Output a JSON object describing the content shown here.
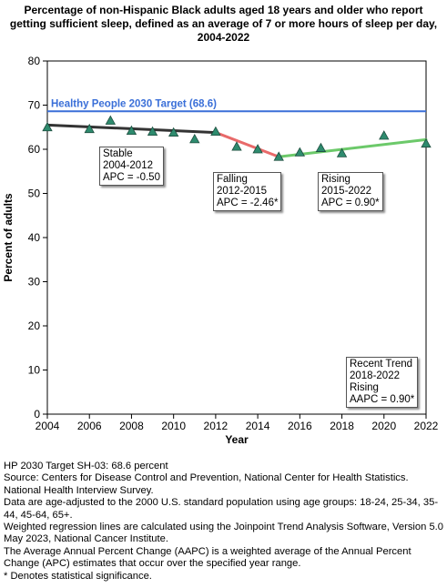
{
  "title": {
    "lines": [
      "Percentage of non-Hispanic Black adults aged 18 years and older who report",
      "getting sufficient sleep, defined as an average of 7 or more hours of sleep per day,",
      "2004-2022"
    ]
  },
  "chart_data": {
    "type": "scatter",
    "xlabel": "Year",
    "ylabel": "Percent of adults",
    "xlim": [
      2004,
      2022
    ],
    "ylim": [
      0,
      80
    ],
    "x_ticks": [
      2004,
      2006,
      2008,
      2010,
      2012,
      2014,
      2016,
      2018,
      2020,
      2022
    ],
    "y_ticks": [
      0,
      10,
      20,
      30,
      40,
      50,
      60,
      70,
      80
    ],
    "grid": false,
    "points": {
      "x": [
        2004,
        2006,
        2007,
        2008,
        2009,
        2010,
        2011,
        2012,
        2013,
        2014,
        2015,
        2016,
        2017,
        2018,
        2020,
        2022
      ],
      "y": [
        65.0,
        64.6,
        66.5,
        64.2,
        64.0,
        63.8,
        62.3,
        64.0,
        60.6,
        60.0,
        58.3,
        59.3,
        60.3,
        59.1,
        63.1,
        61.3
      ],
      "color": "#2e8b6e"
    },
    "target": {
      "label": "Healthy People 2030 Target (68.6)",
      "value": 68.6,
      "color": "#3a6fd8"
    },
    "trend_segments": [
      {
        "x": [
          2004,
          2012
        ],
        "y": [
          65.5,
          63.8
        ],
        "color": "#333333"
      },
      {
        "x": [
          2012,
          2015
        ],
        "y": [
          63.8,
          58.3
        ],
        "color": "#e86a6a"
      },
      {
        "x": [
          2015,
          2022
        ],
        "y": [
          58.3,
          62.2
        ],
        "color": "#6cc96a"
      }
    ],
    "annotations": [
      {
        "lines": [
          "Stable",
          "2004-2012",
          "APC = -0.50"
        ]
      },
      {
        "lines": [
          "Falling",
          "2012-2015",
          "APC = -2.46*"
        ]
      },
      {
        "lines": [
          "Rising",
          "2015-2022",
          "APC =  0.90*"
        ]
      },
      {
        "lines": [
          "Recent Trend",
          "2018-2022",
          "Rising",
          "AAPC =  0.90*"
        ]
      }
    ]
  },
  "notes": [
    "HP 2030 Target SH-03: 68.6 percent",
    "Source: Centers for Disease Control and Prevention, National Center for Health Statistics. National Health Interview Survey.",
    "Data are age-adjusted to the 2000 U.S. standard population using age groups: 18-24, 25-34, 35-44, 45-64, 65+.",
    "Weighted regression lines are calculated using the Joinpoint Trend Analysis Software, Version 5.0 May 2023, National Cancer Institute.",
    "The Average Annual Percent Change (AAPC) is a weighted average of the Annual Percent Change (APC) estimates that occur over the specified year range.",
    "* Denotes statistical significance."
  ]
}
